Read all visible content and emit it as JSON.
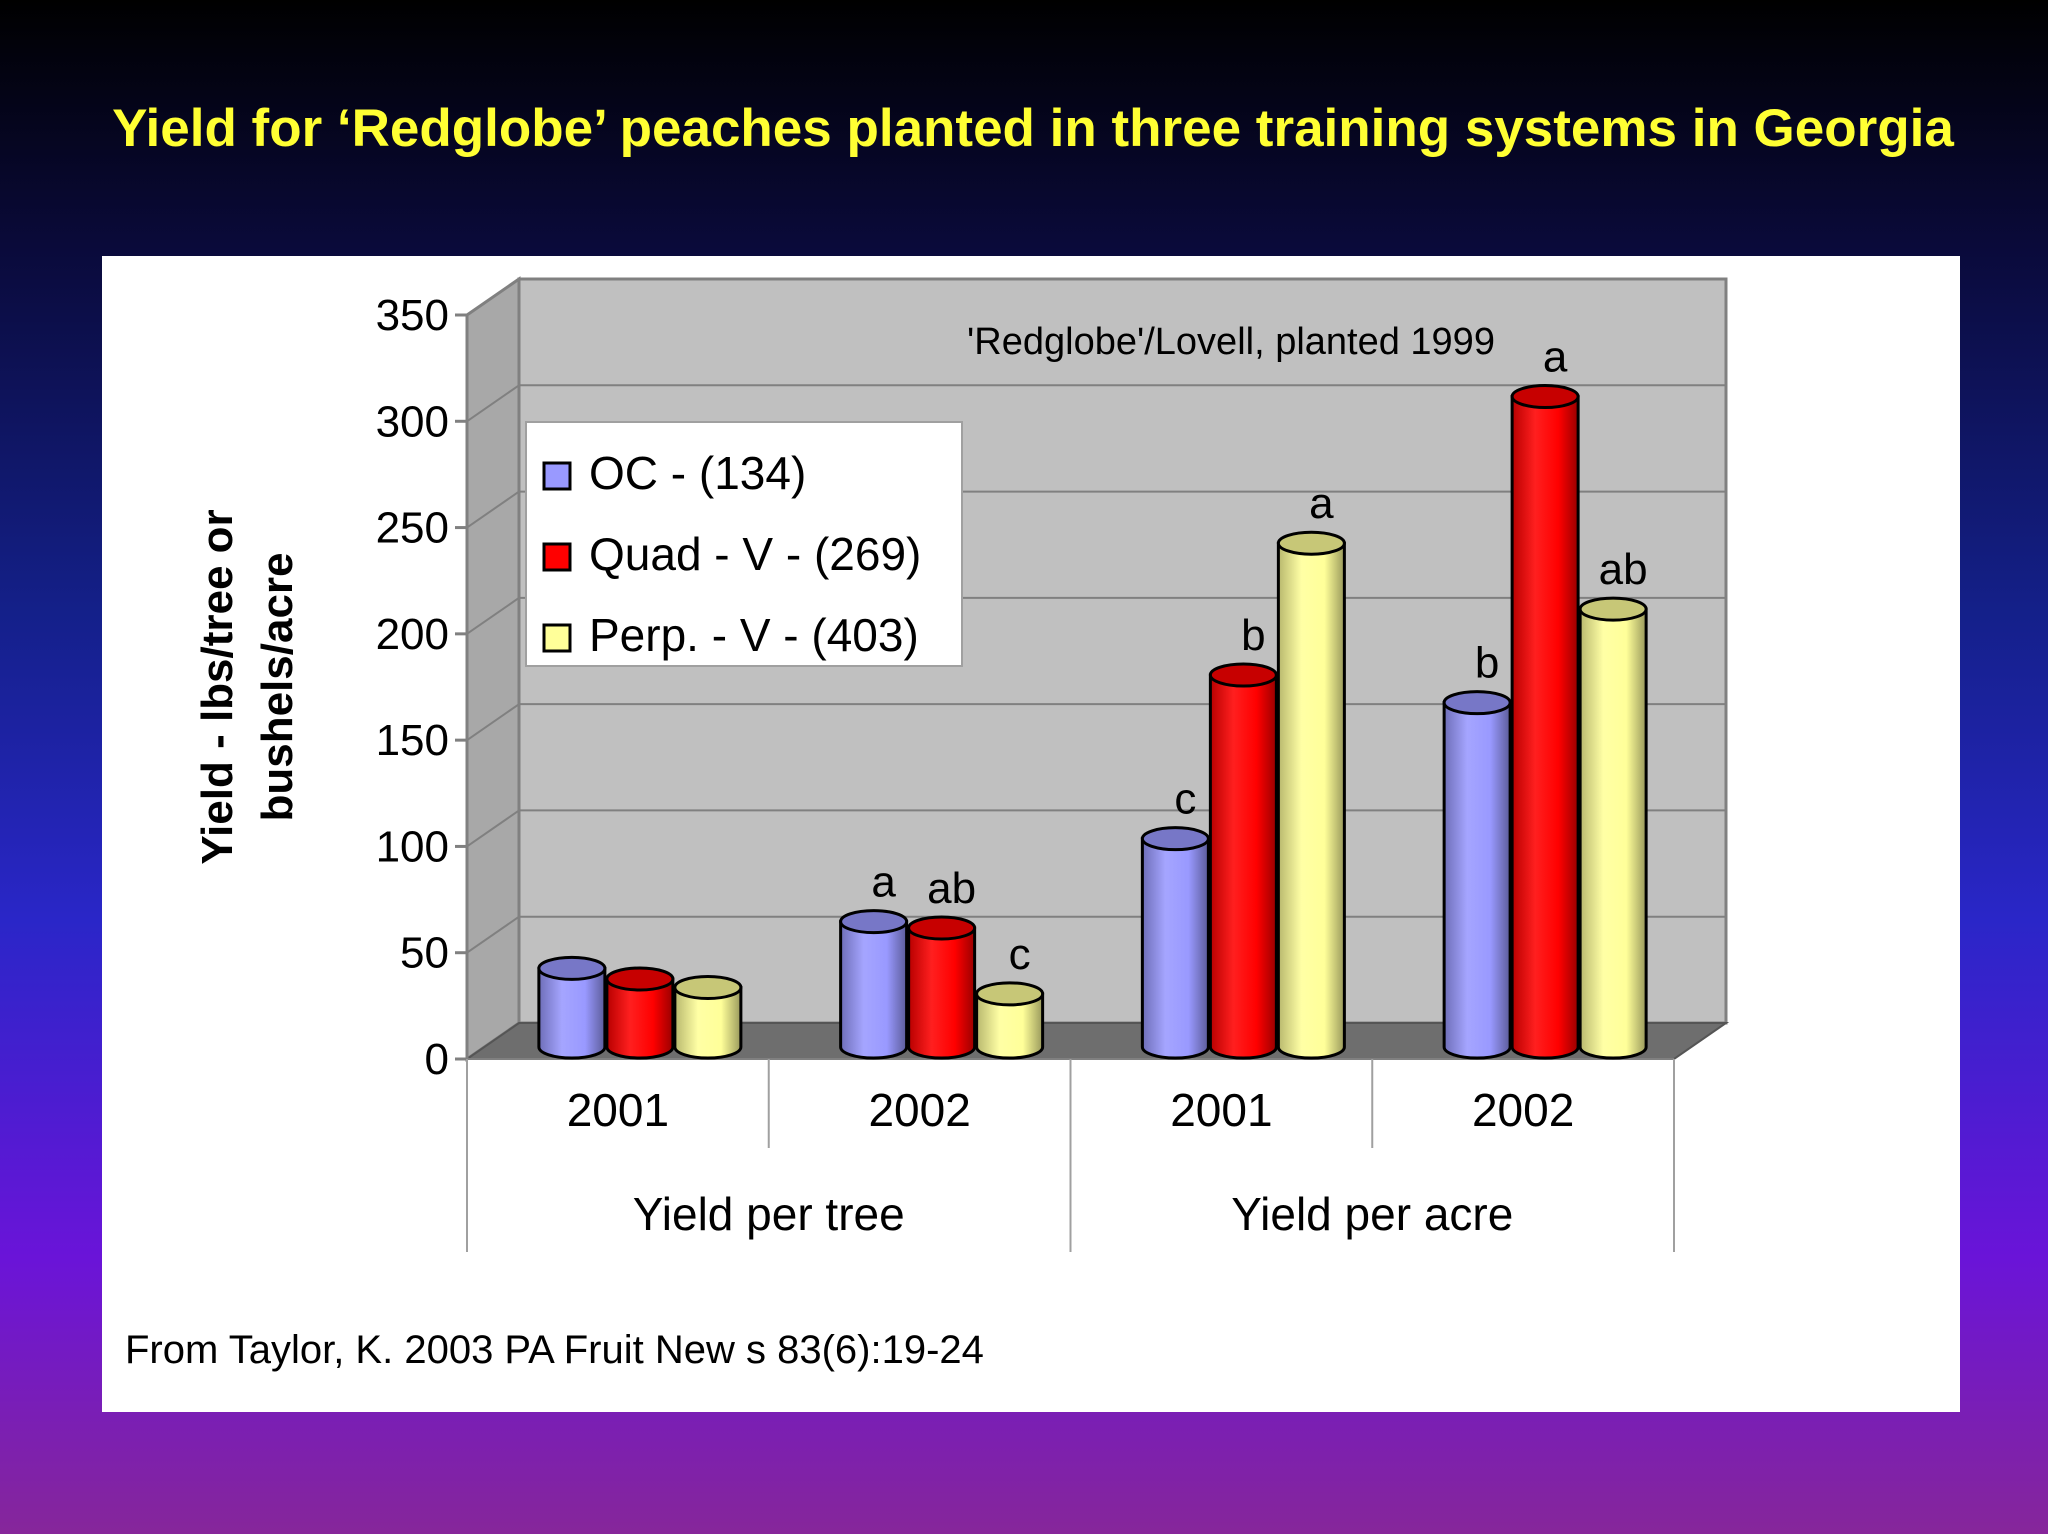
{
  "slide": {
    "title": "Yield for ‘Redglobe’ peaches planted in three training systems in Georgia",
    "source": "From Taylor, K. 2003 PA Fruit New s 83(6):19-24"
  },
  "chart_data": {
    "type": "bar",
    "style": "3d-cylinder",
    "annotation": "'Redglobe'/Lovell, planted 1999",
    "ylabel_lines": [
      "Yield - lbs/tree or",
      "bushels/acre"
    ],
    "ylim": [
      0,
      350
    ],
    "yticks": [
      0,
      50,
      100,
      150,
      200,
      250,
      300,
      350
    ],
    "grid": true,
    "legend_position": "top-left",
    "categories": [
      "2001",
      "2002",
      "2001",
      "2002"
    ],
    "groups": [
      {
        "label": "Yield per tree",
        "span": [
          0,
          1
        ]
      },
      {
        "label": "Yield per acre",
        "span": [
          2,
          3
        ]
      }
    ],
    "series": [
      {
        "name": "OC - (134)",
        "color": "#9999ff",
        "values": [
          37,
          59,
          98,
          162
        ],
        "letters": [
          "",
          "a",
          "c",
          "b"
        ]
      },
      {
        "name": "Quad - V - (269)",
        "color": "#ff0000",
        "values": [
          32,
          56,
          175,
          306
        ],
        "letters": [
          "",
          "ab",
          "b",
          "a"
        ]
      },
      {
        "name": "Perp. - V - (403)",
        "color": "#ffff99",
        "values": [
          28,
          25,
          237,
          206
        ],
        "letters": [
          "",
          "c",
          "a",
          "ab"
        ]
      }
    ]
  }
}
